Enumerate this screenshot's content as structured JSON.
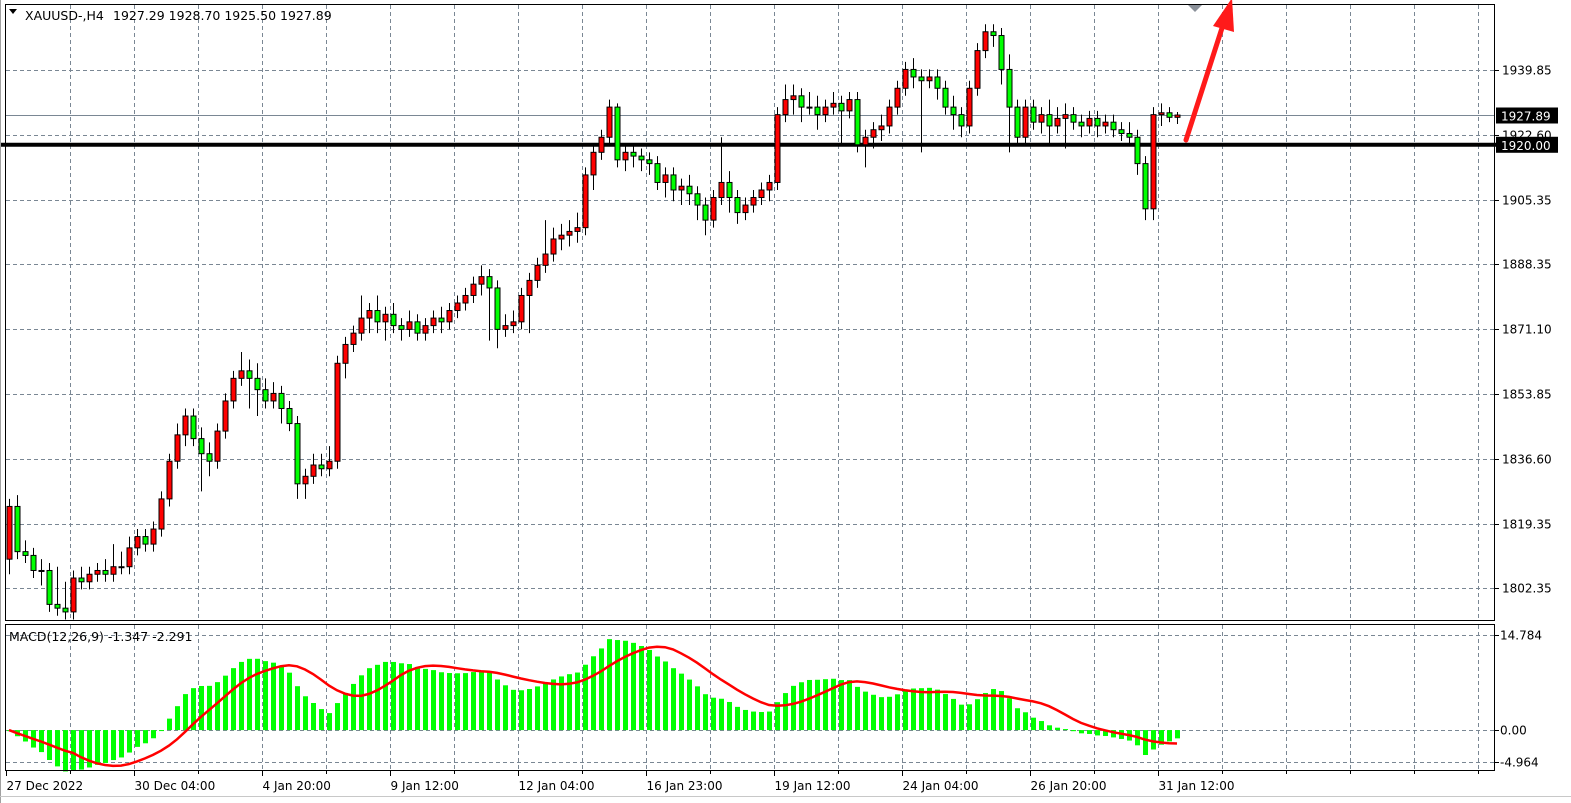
{
  "header": {
    "symbol_timeframe": "XAUUSD-,H4",
    "ohlc_text": "1927.29 1928.70 1925.50 1927.89"
  },
  "colors": {
    "bull_candle": "#ff0000",
    "bear_candle": "#00ff00",
    "macd_histogram": "#00ff00",
    "macd_signal": "#ff0000",
    "grid": "#7a8794",
    "level_line": "#000000",
    "bid_line": "#7a8794",
    "arrow": "#ff1a1a"
  },
  "chart_data": [
    {
      "type": "candlestick",
      "title": "XAUUSD-,H4",
      "ylim": [
        1796.5,
        1958
      ],
      "y_ticks": [
        "1939.85",
        "1922.60",
        "1905.35",
        "1888.35",
        "1871.10",
        "1853.85",
        "1836.60",
        "1819.35",
        "1802.35"
      ],
      "x_tick_labels": [
        "27 Dec 2022",
        "30 Dec 04:00",
        "4 Jan 20:00",
        "9 Jan 12:00",
        "12 Jan 04:00",
        "16 Jan 23:00",
        "19 Jan 12:00",
        "24 Jan 04:00",
        "26 Jan 20:00",
        "31 Jan 12:00"
      ],
      "grid": true,
      "current_price": "1927.89",
      "horizontal_level": "1920.00",
      "annotation": "red up arrow",
      "ohlc": [
        [
          1810,
          1826,
          1806,
          1824
        ],
        [
          1824,
          1827,
          1810,
          1812
        ],
        [
          1812,
          1815,
          1809,
          1811
        ],
        [
          1811,
          1813,
          1805,
          1807
        ],
        [
          1807,
          1810,
          1803,
          1807
        ],
        [
          1807,
          1809,
          1796,
          1798
        ],
        [
          1798,
          1808,
          1795,
          1797
        ],
        [
          1797,
          1804,
          1794,
          1796
        ],
        [
          1796,
          1807,
          1794,
          1805
        ],
        [
          1805,
          1808,
          1802,
          1804
        ],
        [
          1804,
          1808,
          1802,
          1806
        ],
        [
          1806,
          1809,
          1804,
          1807
        ],
        [
          1807,
          1810,
          1804,
          1806
        ],
        [
          1806,
          1814,
          1804,
          1808
        ],
        [
          1808,
          1812,
          1806,
          1808
        ],
        [
          1808,
          1816,
          1806,
          1813
        ],
        [
          1813,
          1818,
          1811,
          1816
        ],
        [
          1816,
          1818,
          1812,
          1814
        ],
        [
          1814,
          1820,
          1812,
          1818
        ],
        [
          1818,
          1828,
          1816,
          1826
        ],
        [
          1826,
          1838,
          1824,
          1836
        ],
        [
          1836,
          1846,
          1834,
          1843
        ],
        [
          1843,
          1850,
          1840,
          1848
        ],
        [
          1848,
          1850,
          1840,
          1842
        ],
        [
          1842,
          1845,
          1828,
          1838
        ],
        [
          1838,
          1841,
          1832,
          1836
        ],
        [
          1836,
          1846,
          1834,
          1844
        ],
        [
          1844,
          1854,
          1842,
          1852
        ],
        [
          1852,
          1860,
          1850,
          1858
        ],
        [
          1858,
          1865,
          1856,
          1860
        ],
        [
          1860,
          1863,
          1850,
          1858
        ],
        [
          1858,
          1862,
          1848,
          1855
        ],
        [
          1855,
          1858,
          1850,
          1852
        ],
        [
          1852,
          1857,
          1850,
          1854
        ],
        [
          1854,
          1856,
          1846,
          1850
        ],
        [
          1850,
          1852,
          1844,
          1846
        ],
        [
          1846,
          1848,
          1826,
          1830
        ],
        [
          1830,
          1834,
          1826,
          1832
        ],
        [
          1832,
          1838,
          1830,
          1835
        ],
        [
          1835,
          1838,
          1832,
          1834
        ],
        [
          1834,
          1840,
          1832,
          1836
        ],
        [
          1836,
          1864,
          1834,
          1862
        ],
        [
          1862,
          1869,
          1858,
          1867
        ],
        [
          1867,
          1872,
          1865,
          1870
        ],
        [
          1870,
          1880,
          1868,
          1874
        ],
        [
          1874,
          1878,
          1870,
          1876
        ],
        [
          1876,
          1880,
          1870,
          1873
        ],
        [
          1873,
          1877,
          1868,
          1875
        ],
        [
          1875,
          1878,
          1870,
          1872
        ],
        [
          1872,
          1874,
          1868,
          1871
        ],
        [
          1871,
          1876,
          1869,
          1873
        ],
        [
          1873,
          1875,
          1868,
          1870
        ],
        [
          1870,
          1874,
          1868,
          1872
        ],
        [
          1872,
          1876,
          1870,
          1874
        ],
        [
          1874,
          1877,
          1870,
          1873
        ],
        [
          1873,
          1878,
          1871,
          1876
        ],
        [
          1876,
          1880,
          1874,
          1878
        ],
        [
          1878,
          1882,
          1876,
          1880
        ],
        [
          1880,
          1885,
          1878,
          1883
        ],
        [
          1883,
          1888,
          1880,
          1885
        ],
        [
          1885,
          1887,
          1868,
          1882
        ],
        [
          1882,
          1884,
          1866,
          1871
        ],
        [
          1871,
          1875,
          1869,
          1872
        ],
        [
          1872,
          1876,
          1870,
          1873
        ],
        [
          1873,
          1882,
          1871,
          1880
        ],
        [
          1880,
          1886,
          1870,
          1884
        ],
        [
          1884,
          1890,
          1882,
          1888
        ],
        [
          1888,
          1900,
          1886,
          1891
        ],
        [
          1891,
          1898,
          1889,
          1895
        ],
        [
          1895,
          1899,
          1892,
          1896
        ],
        [
          1896,
          1900,
          1893,
          1897
        ],
        [
          1897,
          1902,
          1894,
          1898
        ],
        [
          1898,
          1914,
          1896,
          1912
        ],
        [
          1912,
          1920,
          1908,
          1918
        ],
        [
          1918,
          1924,
          1916,
          1922
        ],
        [
          1922,
          1932,
          1920,
          1930
        ],
        [
          1930,
          1931,
          1914,
          1916
        ],
        [
          1916,
          1920,
          1913,
          1918
        ],
        [
          1918,
          1920,
          1914,
          1917
        ],
        [
          1917,
          1919,
          1913,
          1916
        ],
        [
          1916,
          1918,
          1912,
          1915
        ],
        [
          1915,
          1917,
          1908,
          1910
        ],
        [
          1910,
          1914,
          1906,
          1912
        ],
        [
          1912,
          1914,
          1905,
          1908
        ],
        [
          1908,
          1911,
          1904,
          1909
        ],
        [
          1909,
          1912,
          1904,
          1907
        ],
        [
          1907,
          1909,
          1900,
          1904
        ],
        [
          1904,
          1906,
          1896,
          1900
        ],
        [
          1900,
          1908,
          1898,
          1906
        ],
        [
          1906,
          1922,
          1904,
          1910
        ],
        [
          1910,
          1913,
          1902,
          1906
        ],
        [
          1906,
          1908,
          1899,
          1902
        ],
        [
          1902,
          1906,
          1900,
          1904
        ],
        [
          1904,
          1908,
          1902,
          1906
        ],
        [
          1906,
          1910,
          1904,
          1908
        ],
        [
          1908,
          1912,
          1905,
          1910
        ],
        [
          1910,
          1930,
          1908,
          1928
        ],
        [
          1928,
          1936,
          1926,
          1932
        ],
        [
          1932,
          1936,
          1928,
          1933
        ],
        [
          1933,
          1935,
          1926,
          1930
        ],
        [
          1930,
          1934,
          1928,
          1930
        ],
        [
          1930,
          1933,
          1924,
          1928
        ],
        [
          1928,
          1932,
          1926,
          1930
        ],
        [
          1930,
          1934,
          1928,
          1931
        ],
        [
          1931,
          1933,
          1920,
          1929
        ],
        [
          1929,
          1934,
          1927,
          1932
        ],
        [
          1932,
          1934,
          1918,
          1920
        ],
        [
          1920,
          1924,
          1914,
          1922
        ],
        [
          1922,
          1926,
          1919,
          1924
        ],
        [
          1924,
          1928,
          1921,
          1925
        ],
        [
          1925,
          1932,
          1923,
          1930
        ],
        [
          1930,
          1937,
          1928,
          1935
        ],
        [
          1935,
          1942,
          1933,
          1940
        ],
        [
          1940,
          1943,
          1935,
          1938
        ],
        [
          1938,
          1940,
          1918,
          1937
        ],
        [
          1937,
          1940,
          1935,
          1938
        ],
        [
          1938,
          1940,
          1932,
          1935
        ],
        [
          1935,
          1937,
          1928,
          1930
        ],
        [
          1930,
          1933,
          1924,
          1928
        ],
        [
          1928,
          1930,
          1922,
          1925
        ],
        [
          1925,
          1937,
          1923,
          1935
        ],
        [
          1935,
          1947,
          1933,
          1945
        ],
        [
          1945,
          1952,
          1943,
          1950
        ],
        [
          1950,
          1952,
          1946,
          1949
        ],
        [
          1949,
          1951,
          1936,
          1940
        ],
        [
          1940,
          1944,
          1918,
          1930
        ],
        [
          1930,
          1932,
          1920,
          1922
        ],
        [
          1922,
          1932,
          1920,
          1930
        ],
        [
          1930,
          1932,
          1924,
          1926
        ],
        [
          1926,
          1930,
          1923,
          1928
        ],
        [
          1928,
          1932,
          1920,
          1925
        ],
        [
          1925,
          1930,
          1923,
          1927
        ],
        [
          1927,
          1931,
          1919,
          1928
        ],
        [
          1928,
          1930,
          1924,
          1926
        ],
        [
          1926,
          1928,
          1922,
          1925
        ],
        [
          1925,
          1929,
          1923,
          1927
        ],
        [
          1927,
          1929,
          1922,
          1925
        ],
        [
          1925,
          1928,
          1923,
          1926
        ],
        [
          1926,
          1928,
          1922,
          1924
        ],
        [
          1924,
          1926,
          1921,
          1923
        ],
        [
          1923,
          1926,
          1920,
          1922
        ],
        [
          1922,
          1924,
          1912,
          1915
        ],
        [
          1915,
          1917,
          1900,
          1903
        ],
        [
          1903,
          1930,
          1900,
          1928
        ],
        [
          1928,
          1931,
          1925,
          1928.5
        ],
        [
          1928.5,
          1930,
          1926,
          1927.29
        ],
        [
          1927.29,
          1928.7,
          1925.5,
          1927.89
        ]
      ]
    },
    {
      "type": "bar+line",
      "title": "MACD(12,26,9) -1.347 -2.291",
      "indicator": "MACD",
      "params": [
        12,
        26,
        9
      ],
      "main_value": "-1.347",
      "signal_value": "-2.291",
      "ylim": [
        -4.964,
        14.784
      ],
      "y_ticks": [
        "14.784",
        "0.00",
        "-4.964"
      ]
    }
  ]
}
